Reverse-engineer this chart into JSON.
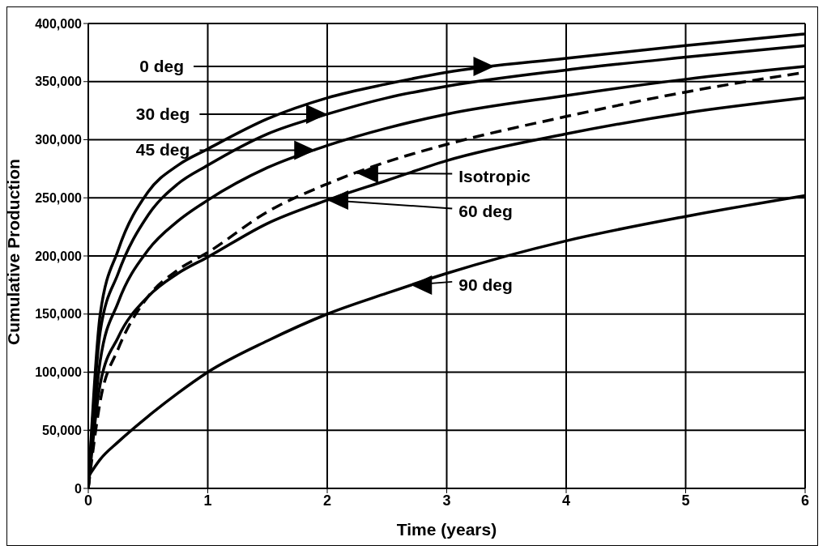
{
  "chart_data": {
    "type": "line",
    "xlabel": "Time (years)",
    "ylabel": "Cumulative Production",
    "x": [
      0,
      0.1,
      0.25,
      0.5,
      0.75,
      1,
      1.5,
      2,
      2.5,
      3,
      4,
      5,
      6
    ],
    "series": [
      {
        "color": "#000000",
        "line_style": "solid",
        "values": [
          0,
          150000,
          205000,
          255000,
          278000,
          292000,
          318000,
          336000,
          348000,
          358000,
          370000,
          381000,
          391000
        ]
      },
      {
        "color": "#000000",
        "line_style": "solid",
        "values": [
          0,
          135000,
          185000,
          235000,
          262000,
          278000,
          305000,
          322000,
          336000,
          346000,
          360000,
          371000,
          381000
        ]
      },
      {
        "color": "#000000",
        "line_style": "solid",
        "values": [
          0,
          110000,
          160000,
          205000,
          230000,
          248000,
          276000,
          295000,
          310000,
          322000,
          338000,
          352000,
          363000
        ]
      },
      {
        "color": "#000000",
        "line_style": "dashed",
        "values": [
          0,
          75000,
          120000,
          165000,
          188000,
          203000,
          238000,
          262000,
          281000,
          296000,
          320000,
          341000,
          358000
        ]
      },
      {
        "color": "#000000",
        "line_style": "solid",
        "values": [
          0,
          90000,
          130000,
          165000,
          185000,
          199000,
          228000,
          248000,
          265000,
          282000,
          305000,
          323000,
          336000
        ]
      },
      {
        "color": "#000000",
        "line_style": "solid",
        "values": [
          10000,
          25000,
          40000,
          62000,
          82000,
          100000,
          127000,
          150000,
          168000,
          185000,
          213000,
          234000,
          252000
        ]
      }
    ],
    "annotations": [
      {
        "text": "0 deg",
        "x": 3.4,
        "y": 363000
      },
      {
        "text": "30 deg",
        "x": 2.0,
        "y": 322000
      },
      {
        "text": "45 deg",
        "x": 1.9,
        "y": 291000
      },
      {
        "text": "Isotropic",
        "x": 2.25,
        "y": 271000
      },
      {
        "text": "60 deg",
        "x": 2.0,
        "y": 248000
      },
      {
        "text": "90 deg",
        "x": 2.7,
        "y": 175000
      }
    ],
    "xlim": [
      0,
      6
    ],
    "xticks": [
      0,
      1,
      2,
      3,
      4,
      5,
      6
    ],
    "ylim": [
      0,
      400000
    ],
    "yticks": [
      0,
      {
        "value": 50000,
        "label": "50,000"
      },
      {
        "value": 100000,
        "label": "100,000"
      },
      {
        "value": 150000,
        "label": "150,000"
      },
      {
        "value": 200000,
        "label": "200,000"
      },
      {
        "value": 250000,
        "label": "250,000"
      },
      {
        "value": 300000,
        "label": "300,000"
      },
      {
        "value": 350000,
        "label": "350,000"
      },
      {
        "value": 400000,
        "label": "400,000"
      }
    ],
    "grid": true,
    "marker": "none"
  }
}
